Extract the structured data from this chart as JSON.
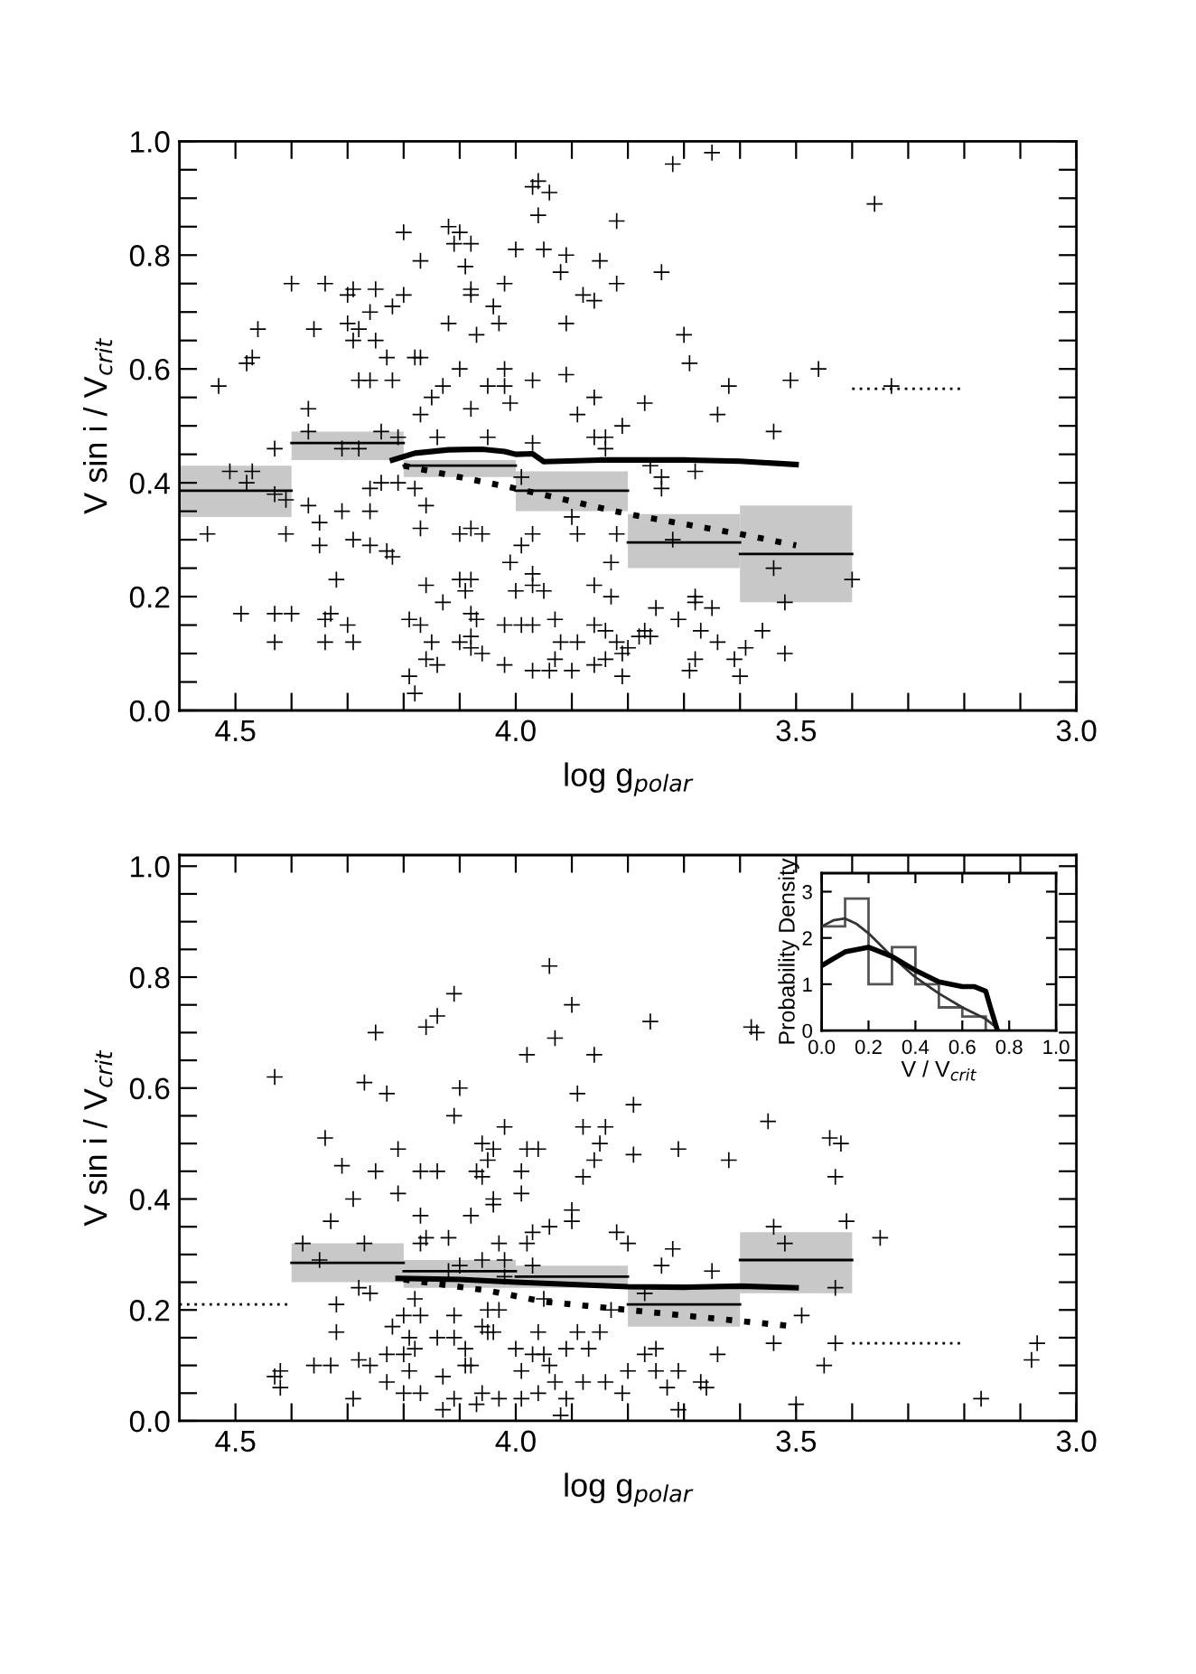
{
  "chart_data": [
    {
      "type": "scatter",
      "xlabel": "log g$_{polar}$",
      "ylabel": "V sin i / V$_{crit}$",
      "xlim": [
        4.6,
        3.0
      ],
      "ylim": [
        0,
        1.0
      ],
      "xticks": [
        {
          "value": 4.5,
          "label": "4.5"
        },
        {
          "value": 4.4,
          "label": null
        },
        {
          "value": 4.3,
          "label": null
        },
        {
          "value": 4.2,
          "label": null
        },
        {
          "value": 4.1,
          "label": null
        },
        {
          "value": 4.0,
          "label": "4.0"
        },
        {
          "value": 3.9,
          "label": null
        },
        {
          "value": 3.8,
          "label": null
        },
        {
          "value": 3.7,
          "label": null
        },
        {
          "value": 3.6,
          "label": null
        },
        {
          "value": 3.5,
          "label": "3.5"
        },
        {
          "value": 3.4,
          "label": null
        },
        {
          "value": 3.3,
          "label": null
        },
        {
          "value": 3.2,
          "label": null
        },
        {
          "value": 3.1,
          "label": null
        },
        {
          "value": 3.0,
          "label": "3.0"
        }
      ],
      "yticks": [
        {
          "value": 0,
          "label": "0.0"
        },
        {
          "value": 0.05,
          "label": null
        },
        {
          "value": 0.1,
          "label": null
        },
        {
          "value": 0.15,
          "label": null
        },
        {
          "value": 0.2,
          "label": "0.2"
        },
        {
          "value": 0.25,
          "label": null
        },
        {
          "value": 0.3,
          "label": null
        },
        {
          "value": 0.35,
          "label": null
        },
        {
          "value": 0.4,
          "label": "0.4"
        },
        {
          "value": 0.45,
          "label": null
        },
        {
          "value": 0.5,
          "label": null
        },
        {
          "value": 0.55,
          "label": null
        },
        {
          "value": 0.6,
          "label": "0.6"
        },
        {
          "value": 0.65,
          "label": null
        },
        {
          "value": 0.7,
          "label": null
        },
        {
          "value": 0.75,
          "label": null
        },
        {
          "value": 0.8,
          "label": "0.8"
        },
        {
          "value": 0.85,
          "label": null
        },
        {
          "value": 0.9,
          "label": null
        },
        {
          "value": 0.95,
          "label": null
        },
        {
          "value": 1.0,
          "label": "1.0"
        }
      ],
      "grid": false,
      "series": [
        {
          "type": "bar",
          "x": [
            4.5,
            4.3,
            4.1,
            3.9,
            3.7,
            3.5
          ],
          "base": [
            0.34,
            0.44,
            0.41,
            0.35,
            0.25,
            0.19
          ],
          "values": [
            0.09,
            0.05,
            0.03,
            0.07,
            0.095,
            0.17
          ],
          "color": "#c8c8c8"
        },
        {
          "type": "scatter",
          "marker": "cross",
          "color": "#000000",
          "x": [
            4.53,
            4.55,
            4.49,
            4.48,
            4.47,
            4.46,
            4.51,
            4.48,
            4.47,
            4.43,
            4.43,
            4.43,
            4.43,
            4.41,
            4.41,
            4.4,
            4.4,
            4.37,
            4.37,
            4.36,
            4.37,
            4.35,
            4.35,
            4.34,
            4.34,
            4.34,
            4.33,
            4.32,
            4.31,
            4.3,
            4.3,
            4.29,
            4.29,
            4.28,
            4.28,
            4.28,
            4.3,
            4.29,
            4.31,
            4.29,
            4.26,
            4.25,
            4.25,
            4.26,
            4.26,
            4.26,
            4.26,
            4.24,
            4.24,
            4.23,
            4.22,
            4.22,
            4.22,
            4.23,
            4.2,
            4.2,
            4.21,
            4.21,
            4.19,
            4.18,
            4.19,
            4.18,
            4.17,
            4.17,
            4.17,
            4.18,
            4.17,
            4.16,
            4.17,
            4.16,
            4.14,
            4.16,
            4.15,
            4.15,
            4.14,
            4.13,
            4.13,
            4.12,
            4.11,
            4.1,
            4.12,
            4.1,
            4.1,
            4.1,
            4.1,
            4.09,
            4.09,
            4.08,
            4.08,
            4.08,
            4.08,
            4.07,
            4.08,
            4.08,
            4.08,
            4.07,
            4.08,
            4.08,
            4.06,
            4.06,
            4.05,
            4.05,
            4.04,
            4.03,
            4.02,
            4.02,
            4.02,
            4.02,
            4.02,
            4.01,
            4.01,
            4.0,
            4.0,
            3.99,
            3.99,
            3.99,
            3.97,
            3.97,
            3.96,
            3.97,
            3.97,
            3.97,
            3.97,
            3.97,
            3.97,
            3.96,
            3.95,
            3.95,
            3.94,
            3.94,
            3.93,
            3.93,
            3.92,
            3.92,
            3.91,
            3.91,
            3.91,
            3.9,
            3.9,
            3.89,
            3.89,
            3.89,
            3.88,
            3.86,
            3.86,
            3.86,
            3.86,
            3.86,
            3.86,
            3.85,
            3.84,
            3.84,
            3.84,
            3.84,
            3.83,
            3.83,
            3.82,
            3.82,
            3.82,
            3.82,
            3.81,
            3.81,
            3.81,
            3.8,
            3.78,
            3.77,
            3.77,
            3.76,
            3.76,
            3.74,
            3.74,
            3.75,
            3.74,
            3.72,
            3.72,
            3.71,
            3.7,
            3.69,
            3.69,
            3.68,
            3.68,
            3.68,
            3.68,
            3.67,
            3.65,
            3.65,
            3.64,
            3.64,
            3.62,
            3.61,
            3.6,
            3.59,
            3.56,
            3.54,
            3.54,
            3.52,
            3.52,
            3.51,
            3.46,
            3.4,
            3.36,
            3.33
          ],
          "values": [
            0.57,
            0.31,
            0.17,
            0.61,
            0.62,
            0.67,
            0.42,
            0.4,
            0.42,
            0.17,
            0.12,
            0.46,
            0.38,
            0.37,
            0.31,
            0.17,
            0.75,
            0.53,
            0.49,
            0.67,
            0.36,
            0.33,
            0.29,
            0.75,
            0.16,
            0.12,
            0.17,
            0.23,
            0.46,
            0.68,
            0.73,
            0.74,
            0.65,
            0.67,
            0.58,
            0.46,
            0.15,
            0.12,
            0.35,
            0.3,
            0.7,
            0.74,
            0.65,
            0.58,
            0.29,
            0.35,
            0.39,
            0.4,
            0.49,
            0.62,
            0.71,
            0.58,
            0.27,
            0.28,
            0.73,
            0.84,
            0.48,
            0.4,
            0.06,
            0.03,
            0.16,
            0.62,
            0.62,
            0.79,
            0.52,
            0.39,
            0.32,
            0.22,
            0.15,
            0.09,
            0.08,
            0.36,
            0.55,
            0.12,
            0.48,
            0.19,
            0.57,
            0.85,
            0.82,
            0.84,
            0.68,
            0.31,
            0.12,
            0.6,
            0.23,
            0.21,
            0.78,
            0.73,
            0.53,
            0.74,
            0.82,
            0.66,
            0.32,
            0.23,
            0.17,
            0.16,
            0.13,
            0.11,
            0.1,
            0.31,
            0.57,
            0.48,
            0.71,
            0.68,
            0.57,
            0.15,
            0.08,
            0.75,
            0.6,
            0.54,
            0.26,
            0.81,
            0.21,
            0.41,
            0.29,
            0.15,
            0.15,
            0.92,
            0.93,
            0.24,
            0.07,
            0.47,
            0.58,
            0.31,
            0.22,
            0.87,
            0.81,
            0.21,
            0.91,
            0.07,
            0.16,
            0.09,
            0.77,
            0.12,
            0.8,
            0.68,
            0.59,
            0.34,
            0.07,
            0.31,
            0.52,
            0.12,
            0.73,
            0.55,
            0.72,
            0.48,
            0.22,
            0.08,
            0.15,
            0.79,
            0.48,
            0.46,
            0.14,
            0.09,
            0.26,
            0.2,
            0.86,
            0.75,
            0.31,
            0.12,
            0.06,
            0.5,
            0.1,
            0.11,
            0.13,
            0.14,
            0.54,
            0.13,
            0.43,
            0.41,
            0.39,
            0.18,
            0.77,
            0.3,
            0.96,
            0.16,
            0.66,
            0.07,
            0.61,
            0.19,
            0.09,
            0.2,
            0.42,
            0.14,
            0.18,
            0.98,
            0.52,
            0.12,
            0.57,
            0.09,
            0.06,
            0.11,
            0.14,
            0.49,
            0.25,
            0.1,
            0.19,
            0.58,
            0.6,
            0.23,
            0.89,
            0.57
          ]
        },
        {
          "type": "line",
          "line_style": "solid",
          "color": "#000000",
          "x": [
            4.22,
            4.18,
            4.12,
            4.06,
            4.02,
            4.0,
            3.97,
            3.95,
            3.85,
            3.7,
            3.6,
            3.5
          ],
          "values": [
            0.44,
            0.452,
            0.458,
            0.459,
            0.455,
            0.45,
            0.451,
            0.437,
            0.44,
            0.44,
            0.438,
            0.432
          ]
        },
        {
          "type": "line",
          "line_style": "dotted",
          "color": "#000000",
          "x": [
            4.2,
            4.0,
            3.8,
            3.6,
            3.5
          ],
          "values": [
            0.43,
            0.39,
            0.345,
            0.31,
            0.29
          ]
        },
        {
          "type": "line",
          "line_style": "dotted",
          "color": "#000000",
          "x": [
            3.4,
            3.2
          ],
          "values": [
            0.565,
            0.565
          ]
        },
        {
          "type": "line",
          "line_style": "solid",
          "color": "#000000",
          "x": [
            4.6,
            4.4
          ],
          "values": [
            0.386,
            0.386
          ]
        },
        {
          "type": "line",
          "line_style": "solid",
          "color": "#000000",
          "x": [
            4.4,
            4.2
          ],
          "values": [
            0.47,
            0.47
          ]
        },
        {
          "type": "line",
          "line_style": "solid",
          "color": "#000000",
          "x": [
            4.2,
            4.0
          ],
          "values": [
            0.43,
            0.43
          ]
        },
        {
          "type": "line",
          "line_style": "solid",
          "color": "#000000",
          "x": [
            4.0,
            3.8
          ],
          "values": [
            0.386,
            0.386
          ]
        },
        {
          "type": "line",
          "line_style": "solid",
          "color": "#000000",
          "x": [
            3.8,
            3.6
          ],
          "values": [
            0.295,
            0.295
          ]
        },
        {
          "type": "line",
          "line_style": "solid",
          "color": "#000000",
          "x": [
            3.6,
            3.4
          ],
          "values": [
            0.275,
            0.275
          ]
        }
      ]
    },
    {
      "type": "scatter",
      "xlabel": "log g$_{polar}$",
      "ylabel": "V sin i / V$_{crit}$",
      "xlim": [
        4.6,
        3.0
      ],
      "ylim": [
        0,
        1.02
      ],
      "xticks": [
        {
          "value": 4.5,
          "label": "4.5"
        },
        {
          "value": 4.4,
          "label": null
        },
        {
          "value": 4.3,
          "label": null
        },
        {
          "value": 4.2,
          "label": null
        },
        {
          "value": 4.1,
          "label": null
        },
        {
          "value": 4.0,
          "label": "4.0"
        },
        {
          "value": 3.9,
          "label": null
        },
        {
          "value": 3.8,
          "label": null
        },
        {
          "value": 3.7,
          "label": null
        },
        {
          "value": 3.6,
          "label": null
        },
        {
          "value": 3.5,
          "label": "3.5"
        },
        {
          "value": 3.4,
          "label": null
        },
        {
          "value": 3.3,
          "label": null
        },
        {
          "value": 3.2,
          "label": null
        },
        {
          "value": 3.1,
          "label": null
        },
        {
          "value": 3.0,
          "label": "3.0"
        }
      ],
      "yticks": [
        {
          "value": 0,
          "label": "0.0"
        },
        {
          "value": 0.05,
          "label": null
        },
        {
          "value": 0.1,
          "label": null
        },
        {
          "value": 0.15,
          "label": null
        },
        {
          "value": 0.2,
          "label": "0.2"
        },
        {
          "value": 0.25,
          "label": null
        },
        {
          "value": 0.3,
          "label": null
        },
        {
          "value": 0.35,
          "label": null
        },
        {
          "value": 0.4,
          "label": "0.4"
        },
        {
          "value": 0.45,
          "label": null
        },
        {
          "value": 0.5,
          "label": null
        },
        {
          "value": 0.55,
          "label": null
        },
        {
          "value": 0.6,
          "label": "0.6"
        },
        {
          "value": 0.65,
          "label": null
        },
        {
          "value": 0.7,
          "label": null
        },
        {
          "value": 0.75,
          "label": null
        },
        {
          "value": 0.8,
          "label": "0.8"
        },
        {
          "value": 0.85,
          "label": null
        },
        {
          "value": 0.9,
          "label": null
        },
        {
          "value": 0.95,
          "label": null
        },
        {
          "value": 1.0,
          "label": "1.0"
        }
      ],
      "grid": false,
      "series": [
        {
          "type": "bar",
          "x": [
            4.3,
            4.1,
            3.9,
            3.7,
            3.5
          ],
          "base": [
            0.25,
            0.24,
            0.24,
            0.17,
            0.23
          ],
          "values": [
            0.07,
            0.05,
            0.04,
            0.07,
            0.11
          ],
          "color": "#c8c8c8"
        },
        {
          "type": "scatter",
          "marker": "cross",
          "color": "#000000",
          "x": [
            4.43,
            4.43,
            4.42,
            4.42,
            4.38,
            4.36,
            4.35,
            4.34,
            4.33,
            4.33,
            4.32,
            4.32,
            4.31,
            4.29,
            4.29,
            4.28,
            4.27,
            4.27,
            4.28,
            4.26,
            4.26,
            4.25,
            4.25,
            4.23,
            4.23,
            4.23,
            4.22,
            4.21,
            4.21,
            4.2,
            4.2,
            4.2,
            4.19,
            4.19,
            4.18,
            4.18,
            4.17,
            4.17,
            4.17,
            4.17,
            4.17,
            4.16,
            4.16,
            4.14,
            4.14,
            4.14,
            4.13,
            4.13,
            4.12,
            4.12,
            4.11,
            4.11,
            4.11,
            4.11,
            4.11,
            4.1,
            4.1,
            4.09,
            4.09,
            4.08,
            4.08,
            4.07,
            4.07,
            4.06,
            4.06,
            4.06,
            4.06,
            4.06,
            4.05,
            4.05,
            4.05,
            4.04,
            4.04,
            4.04,
            4.04,
            4.03,
            4.03,
            4.03,
            4.02,
            4.02,
            4.02,
            4.0,
            3.99,
            3.99,
            3.99,
            3.99,
            3.98,
            3.98,
            3.98,
            3.97,
            3.97,
            3.97,
            3.96,
            3.96,
            3.96,
            3.95,
            3.95,
            3.94,
            3.94,
            3.94,
            3.93,
            3.93,
            3.92,
            3.91,
            3.91,
            3.9,
            3.9,
            3.9,
            3.89,
            3.89,
            3.88,
            3.88,
            3.88,
            3.87,
            3.86,
            3.86,
            3.85,
            3.85,
            3.84,
            3.84,
            3.83,
            3.82,
            3.81,
            3.8,
            3.8,
            3.79,
            3.79,
            3.77,
            3.77,
            3.76,
            3.75,
            3.75,
            3.74,
            3.73,
            3.72,
            3.71,
            3.71,
            3.71,
            3.67,
            3.66,
            3.65,
            3.64,
            3.62,
            3.58,
            3.57,
            3.55,
            3.54,
            3.54,
            3.52,
            3.5,
            3.49,
            3.45,
            3.44,
            3.43,
            3.43,
            3.43,
            3.42,
            3.41,
            3.35,
            3.17,
            3.07,
            3.08
          ],
          "values": [
            0.62,
            0.08,
            0.09,
            0.06,
            0.32,
            0.1,
            0.29,
            0.51,
            0.1,
            0.36,
            0.21,
            0.16,
            0.46,
            0.04,
            0.4,
            0.11,
            0.61,
            0.32,
            0.24,
            0.23,
            0.1,
            0.45,
            0.7,
            0.59,
            0.07,
            0.12,
            0.17,
            0.49,
            0.41,
            0.12,
            0.05,
            0.19,
            0.09,
            0.15,
            0.13,
            0.22,
            0.05,
            0.45,
            0.37,
            0.19,
            0.32,
            0.71,
            0.33,
            0.73,
            0.45,
            0.15,
            0.02,
            0.08,
            0.33,
            0.27,
            0.19,
            0.77,
            0.15,
            0.04,
            0.55,
            0.6,
            0.28,
            0.1,
            0.13,
            0.37,
            0.1,
            0.03,
            0.45,
            0.44,
            0.17,
            0.05,
            0.5,
            0.29,
            0.2,
            0.47,
            0.16,
            0.4,
            0.39,
            0.16,
            0.49,
            0.32,
            0.04,
            0.2,
            0.53,
            0.29,
            0.26,
            0.13,
            0.09,
            0.04,
            0.41,
            0.45,
            0.32,
            0.66,
            0.49,
            0.12,
            0.28,
            0.34,
            0.49,
            0.05,
            0.16,
            0.12,
            0.22,
            0.35,
            0.82,
            0.1,
            0.69,
            0.07,
            0.01,
            0.04,
            0.13,
            0.75,
            0.38,
            0.36,
            0.16,
            0.59,
            0.53,
            0.07,
            0.44,
            0.13,
            0.66,
            0.47,
            0.5,
            0.16,
            0.07,
            0.53,
            0.2,
            0.34,
            0.05,
            0.09,
            0.32,
            0.57,
            0.48,
            0.23,
            0.12,
            0.72,
            0.13,
            0.09,
            0.28,
            0.06,
            0.31,
            0.49,
            0.09,
            0.02,
            0.07,
            0.06,
            0.27,
            0.12,
            0.47,
            0.71,
            0.7,
            0.54,
            0.35,
            0.14,
            0.32,
            0.03,
            0.19,
            0.1,
            0.51,
            0.14,
            0.24,
            0.44,
            0.5,
            0.36,
            0.33,
            0.04,
            0.14,
            0.11
          ]
        },
        {
          "type": "line",
          "line_style": "solid",
          "color": "#000000",
          "x": [
            4.21,
            4.1,
            4.0,
            3.9,
            3.8,
            3.7,
            3.6,
            3.5
          ],
          "values": [
            0.257,
            0.255,
            0.25,
            0.246,
            0.242,
            0.241,
            0.243,
            0.24
          ]
        },
        {
          "type": "line",
          "line_style": "dotted",
          "color": "#000000",
          "x": [
            4.2,
            4.05,
            3.95,
            3.8,
            3.7,
            3.6,
            3.5
          ],
          "values": [
            0.255,
            0.235,
            0.215,
            0.2,
            0.19,
            0.18,
            0.17
          ]
        },
        {
          "type": "line",
          "line_style": "dotted",
          "color": "#000000",
          "x": [
            4.6,
            4.4
          ],
          "values": [
            0.21,
            0.21
          ]
        },
        {
          "type": "line",
          "line_style": "dotted",
          "color": "#000000",
          "x": [
            3.4,
            3.2
          ],
          "values": [
            0.14,
            0.14
          ]
        },
        {
          "type": "line",
          "line_style": "solid",
          "color": "#000000",
          "x": [
            4.4,
            4.2
          ],
          "values": [
            0.285,
            0.285
          ]
        },
        {
          "type": "line",
          "line_style": "solid",
          "color": "#000000",
          "x": [
            4.2,
            4.0
          ],
          "values": [
            0.27,
            0.27
          ]
        },
        {
          "type": "line",
          "line_style": "solid",
          "color": "#000000",
          "x": [
            4.0,
            3.8
          ],
          "values": [
            0.26,
            0.26
          ]
        },
        {
          "type": "line",
          "line_style": "solid",
          "color": "#000000",
          "x": [
            3.8,
            3.6
          ],
          "values": [
            0.21,
            0.21
          ]
        },
        {
          "type": "line",
          "line_style": "solid",
          "color": "#000000",
          "x": [
            3.6,
            3.4
          ],
          "values": [
            0.29,
            0.29
          ]
        }
      ]
    },
    {
      "type": "histogram",
      "xlabel": "V / V$_{crit}$",
      "ylabel": "Probability Density",
      "xlim": [
        0,
        1.0
      ],
      "ylim": [
        0,
        3.4
      ],
      "xticks": [
        {
          "value": 0,
          "label": "0.0"
        },
        {
          "value": 0.2,
          "label": "0.2"
        },
        {
          "value": 0.4,
          "label": "0.4"
        },
        {
          "value": 0.6,
          "label": "0.6"
        },
        {
          "value": 0.8,
          "label": "0.8"
        },
        {
          "value": 1.0,
          "label": "1.0"
        }
      ],
      "yticks": [
        0,
        1,
        2,
        3
      ],
      "grid": false,
      "bins": [
        0,
        0.1,
        0.2,
        0.3,
        0.4,
        0.5,
        0.6,
        0.7
      ],
      "values": [
        2.25,
        2.85,
        1.0,
        1.8,
        1.0,
        0.5,
        0.3
      ],
      "color": "#555555",
      "series": [
        {
          "type": "line",
          "line_style": "solid",
          "color": "#333333",
          "x": [
            0,
            0.05,
            0.1,
            0.15,
            0.2,
            0.3,
            0.4,
            0.5,
            0.6,
            0.7,
            0.75
          ],
          "values": [
            2.25,
            2.38,
            2.42,
            2.3,
            2.1,
            1.6,
            1.15,
            0.8,
            0.5,
            0.25,
            0.05
          ]
        },
        {
          "type": "line",
          "line_style": "solid",
          "color": "#000000",
          "x": [
            0,
            0.05,
            0.1,
            0.2,
            0.3,
            0.4,
            0.5,
            0.6,
            0.65,
            0.7,
            0.72,
            0.75
          ],
          "values": [
            1.4,
            1.55,
            1.7,
            1.8,
            1.6,
            1.3,
            1.05,
            0.95,
            0.95,
            0.85,
            0.5,
            0.0
          ]
        }
      ]
    }
  ]
}
